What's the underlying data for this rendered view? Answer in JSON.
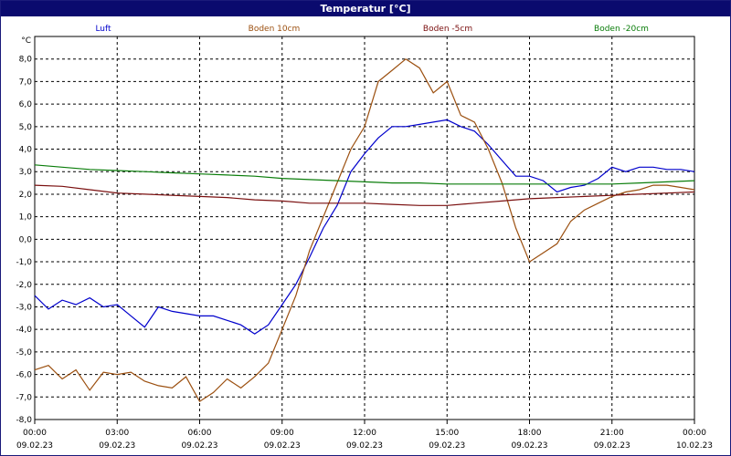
{
  "window": {
    "title": "Temperatur [°C]"
  },
  "chart_data": {
    "type": "line",
    "title": "Temperatur [°C]",
    "ylabel": "°C",
    "ylim": [
      -8,
      9
    ],
    "y_ticks": [
      "8,0",
      "7,0",
      "6,0",
      "5,0",
      "4,0",
      "3,0",
      "2,0",
      "1,0",
      "0,0",
      "-1,0",
      "-2,0",
      "-3,0",
      "-4,0",
      "-5,0",
      "-6,0",
      "-7,0",
      "-8,0"
    ],
    "x_ticks": [
      {
        "time": "00:00",
        "date": "09.02.23"
      },
      {
        "time": "03:00",
        "date": "09.02.23"
      },
      {
        "time": "06:00",
        "date": "09.02.23"
      },
      {
        "time": "09:00",
        "date": "09.02.23"
      },
      {
        "time": "12:00",
        "date": "09.02.23"
      },
      {
        "time": "15:00",
        "date": "09.02.23"
      },
      {
        "time": "18:00",
        "date": "09.02.23"
      },
      {
        "time": "21:00",
        "date": "09.02.23"
      },
      {
        "time": "00:00",
        "date": "10.02.23"
      }
    ],
    "grid": true,
    "legend_position": "top",
    "series": [
      {
        "name": "Luft",
        "color": "#0000cc",
        "x": [
          0,
          0.5,
          1,
          1.5,
          2,
          2.5,
          3,
          3.5,
          4,
          4.5,
          5,
          5.5,
          6,
          6.5,
          7,
          7.5,
          8,
          8.5,
          9,
          9.5,
          10,
          10.5,
          11,
          11.5,
          12,
          12.5,
          13,
          13.5,
          14,
          14.5,
          15,
          15.5,
          16,
          16.5,
          17,
          17.5,
          18,
          18.5,
          19,
          19.5,
          20,
          20.5,
          21,
          21.5,
          22,
          22.5,
          23,
          23.5,
          24
        ],
        "y": [
          -2.5,
          -3.1,
          -2.7,
          -2.9,
          -2.6,
          -3.0,
          -2.9,
          -3.4,
          -3.9,
          -3.0,
          -3.2,
          -3.3,
          -3.4,
          -3.4,
          -3.6,
          -3.8,
          -4.2,
          -3.8,
          -2.9,
          -2.0,
          -0.8,
          0.5,
          1.5,
          3.0,
          3.8,
          4.5,
          5.0,
          5.0,
          5.1,
          5.2,
          5.3,
          5.0,
          4.8,
          4.2,
          3.5,
          2.8,
          2.8,
          2.6,
          2.1,
          2.3,
          2.4,
          2.7,
          3.2,
          3.0,
          3.2,
          3.2,
          3.1,
          3.1,
          3.0
        ]
      },
      {
        "name": "Boden 10cm",
        "color": "#9b4f0f",
        "x": [
          0,
          0.5,
          1,
          1.5,
          2,
          2.5,
          3,
          3.5,
          4,
          4.5,
          5,
          5.5,
          6,
          6.5,
          7,
          7.5,
          8,
          8.5,
          9,
          9.5,
          10,
          10.5,
          11,
          11.5,
          12,
          12.5,
          13,
          13.5,
          14,
          14.5,
          15,
          15.5,
          16,
          16.5,
          17,
          17.5,
          18,
          18.5,
          19,
          19.5,
          20,
          20.5,
          21,
          21.5,
          22,
          22.5,
          23,
          23.5,
          24
        ],
        "y": [
          -5.8,
          -5.6,
          -6.2,
          -5.8,
          -6.7,
          -5.9,
          -6.0,
          -5.9,
          -6.3,
          -6.5,
          -6.6,
          -6.1,
          -7.2,
          -6.8,
          -6.2,
          -6.6,
          -6.1,
          -5.5,
          -4.0,
          -2.5,
          -0.5,
          1.0,
          2.5,
          4.0,
          5.0,
          7.0,
          7.5,
          8.0,
          7.6,
          6.5,
          7.0,
          5.5,
          5.2,
          4.0,
          2.5,
          0.5,
          -1.0,
          -0.6,
          -0.2,
          0.8,
          1.3,
          1.6,
          1.9,
          2.1,
          2.2,
          2.4,
          2.4,
          2.3,
          2.2
        ]
      },
      {
        "name": "Boden -5cm",
        "color": "#7a0f0f",
        "x": [
          0,
          1,
          2,
          3,
          4,
          5,
          6,
          7,
          8,
          9,
          10,
          11,
          12,
          13,
          14,
          15,
          16,
          17,
          18,
          19,
          20,
          21,
          22,
          23,
          24
        ],
        "y": [
          2.4,
          2.35,
          2.2,
          2.05,
          2.0,
          1.95,
          1.9,
          1.85,
          1.75,
          1.7,
          1.6,
          1.6,
          1.6,
          1.55,
          1.5,
          1.5,
          1.6,
          1.7,
          1.8,
          1.85,
          1.9,
          1.95,
          2.0,
          2.05,
          2.1
        ]
      },
      {
        "name": "Boden -20cm",
        "color": "#0a7d0a",
        "x": [
          0,
          1,
          2,
          3,
          4,
          5,
          6,
          7,
          8,
          9,
          10,
          11,
          12,
          13,
          14,
          15,
          16,
          17,
          18,
          19,
          20,
          21,
          22,
          23,
          24
        ],
        "y": [
          3.3,
          3.2,
          3.1,
          3.05,
          3.0,
          2.95,
          2.9,
          2.85,
          2.8,
          2.7,
          2.65,
          2.6,
          2.55,
          2.5,
          2.5,
          2.45,
          2.45,
          2.45,
          2.45,
          2.45,
          2.45,
          2.45,
          2.5,
          2.55,
          2.6
        ]
      }
    ]
  }
}
